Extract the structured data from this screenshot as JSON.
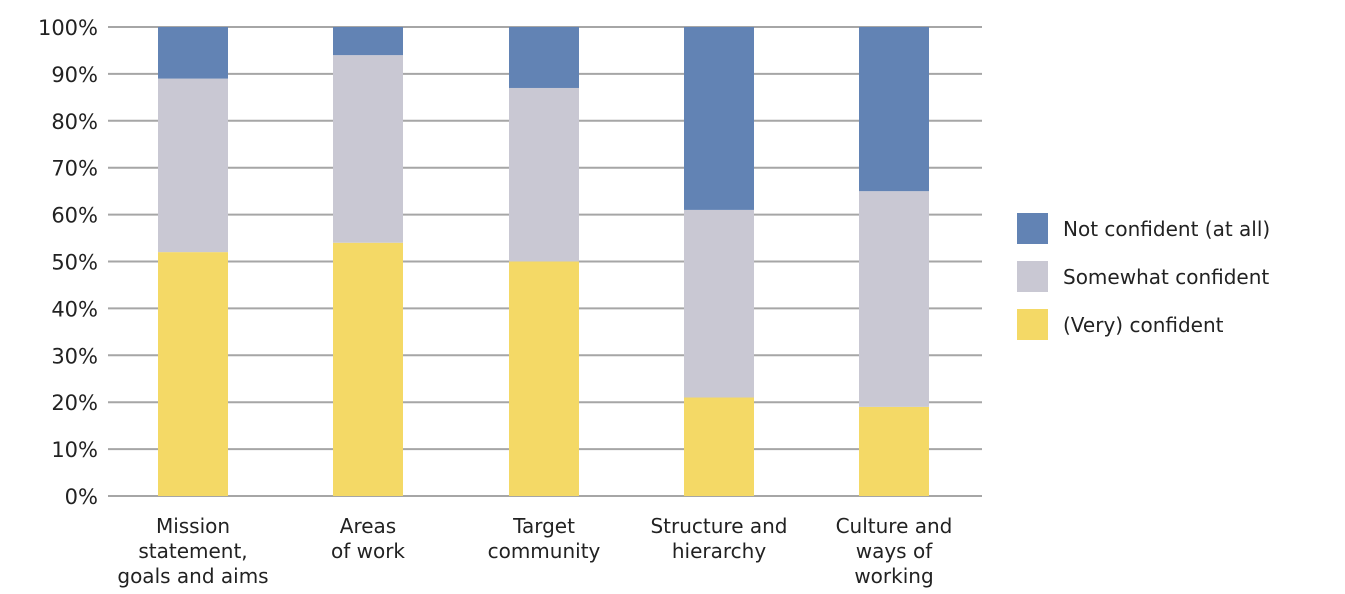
{
  "chart_data": {
    "type": "bar",
    "stacked": true,
    "categories": [
      [
        "Mission",
        "statement,",
        "goals and aims"
      ],
      [
        "Areas",
        "of work"
      ],
      [
        "Target",
        "community"
      ],
      [
        "Structure and",
        "hierarchy"
      ],
      [
        "Culture and",
        "ways of",
        "working"
      ]
    ],
    "series": [
      {
        "name": "(Very) confident",
        "color": "#f4d966",
        "values": [
          52,
          54,
          50,
          21,
          19
        ]
      },
      {
        "name": "Somewhat confident",
        "color": "#c9c8d3",
        "values": [
          37,
          40,
          37,
          40,
          46
        ]
      },
      {
        "name": "Not confident (at all)",
        "color": "#6283b4",
        "values": [
          12,
          7,
          13,
          39,
          35
        ]
      }
    ],
    "ylim": [
      0,
      100
    ],
    "yticks": [
      "0%",
      "10%",
      "20%",
      "30%",
      "40%",
      "50%",
      "60%",
      "70%",
      "80%",
      "90%",
      "100%"
    ],
    "grid": true,
    "legend_position": "right",
    "legend_order": [
      "Not confident (at all)",
      "Somewhat confident",
      "(Very) confident"
    ],
    "title": "",
    "xlabel": "",
    "ylabel": ""
  }
}
